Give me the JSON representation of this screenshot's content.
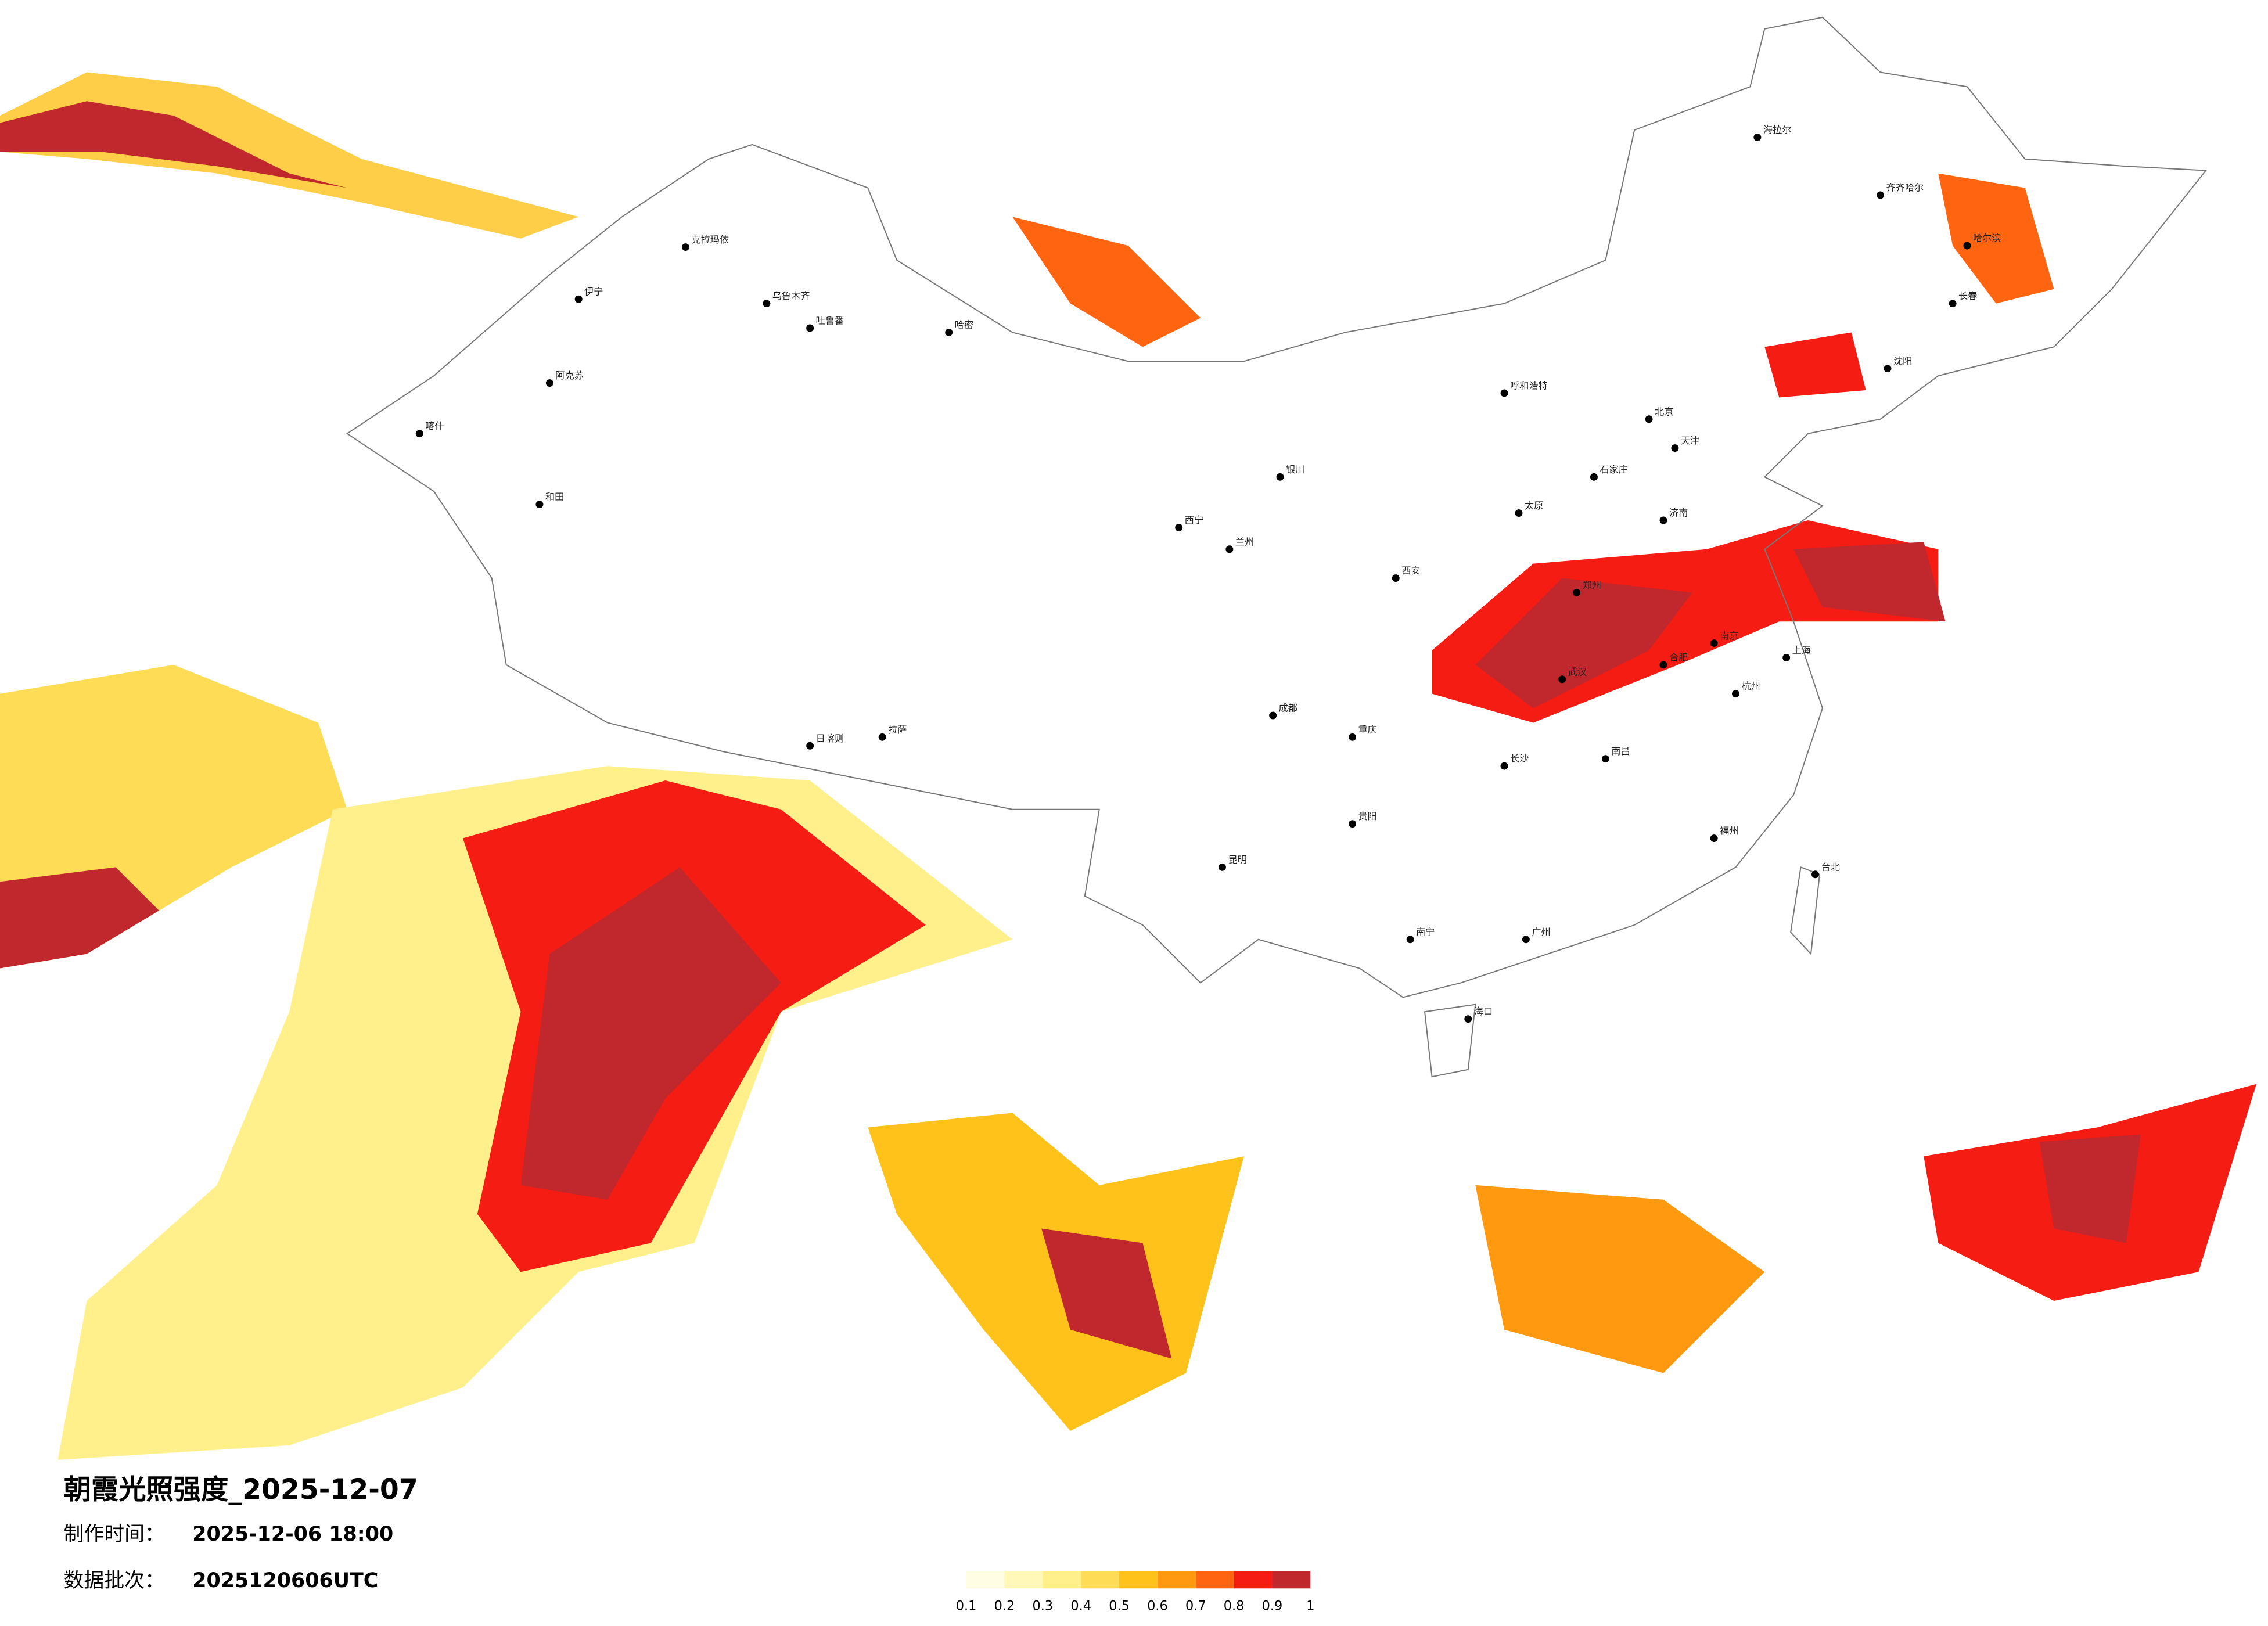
{
  "title": "朝霞光照强度_2025-12-07",
  "production_time": {
    "label": "制作时间：",
    "value": "2025-12-06 18:00"
  },
  "data_batch": {
    "label": "数据批次：",
    "value": "2025120606UTC"
  },
  "legend": {
    "colors": [
      "#fffde3",
      "#fff8b8",
      "#fff08c",
      "#ffdc55",
      "#ffc21a",
      "#ff9a10",
      "#ff6410",
      "#f51c14",
      "#c0282d"
    ],
    "ticks": [
      0.1,
      0.2,
      0.3,
      0.4,
      0.5,
      0.6,
      0.7,
      0.8,
      0.9,
      1
    ]
  },
  "cities": [
    "克拉玛依",
    "乌鲁木齐",
    "吐鲁番",
    "哈密",
    "伊宁",
    "阿克苏",
    "喀什",
    "和田",
    "拉萨",
    "日喀则",
    "西宁",
    "兰州",
    "银川",
    "呼和浩特",
    "北京",
    "天津",
    "石家庄",
    "太原",
    "济南",
    "郑州",
    "西安",
    "成都",
    "重庆",
    "昆明",
    "贵阳",
    "南宁",
    "广州",
    "长沙",
    "武汉",
    "南昌",
    "杭州",
    "上海",
    "南京",
    "合肥",
    "福州",
    "台北",
    "海口",
    "哈尔滨",
    "长春",
    "沈阳",
    "齐齐哈尔",
    "海拉尔"
  ]
}
